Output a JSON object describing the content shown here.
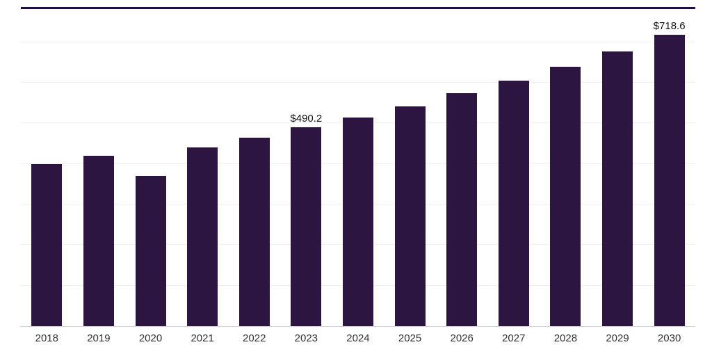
{
  "chart_data": {
    "type": "bar",
    "title": "",
    "xlabel": "",
    "ylabel": "",
    "categories": [
      "2018",
      "2019",
      "2020",
      "2021",
      "2022",
      "2023",
      "2024",
      "2025",
      "2026",
      "2027",
      "2028",
      "2029",
      "2030"
    ],
    "values": [
      400,
      421,
      371,
      440,
      464,
      490.2,
      515,
      542,
      574,
      605,
      639,
      678,
      718.6
    ],
    "data_labels": [
      "",
      "",
      "",
      "",
      "",
      "$490.2",
      "",
      "",
      "",
      "",
      "",
      "",
      "$718.6"
    ],
    "value_prefix": "$",
    "ylim": [
      0,
      782
    ],
    "gridlines": [
      100,
      200,
      300,
      400,
      500,
      600,
      700
    ],
    "grid": "horizontal-unlabeled",
    "legend": "none"
  },
  "colors": {
    "bar": "#2d1542",
    "topline": "#201038",
    "grid": "#f0f0f2",
    "axis": "#d4d4d8",
    "label_text": "#111111",
    "tick_text": "#333333"
  }
}
